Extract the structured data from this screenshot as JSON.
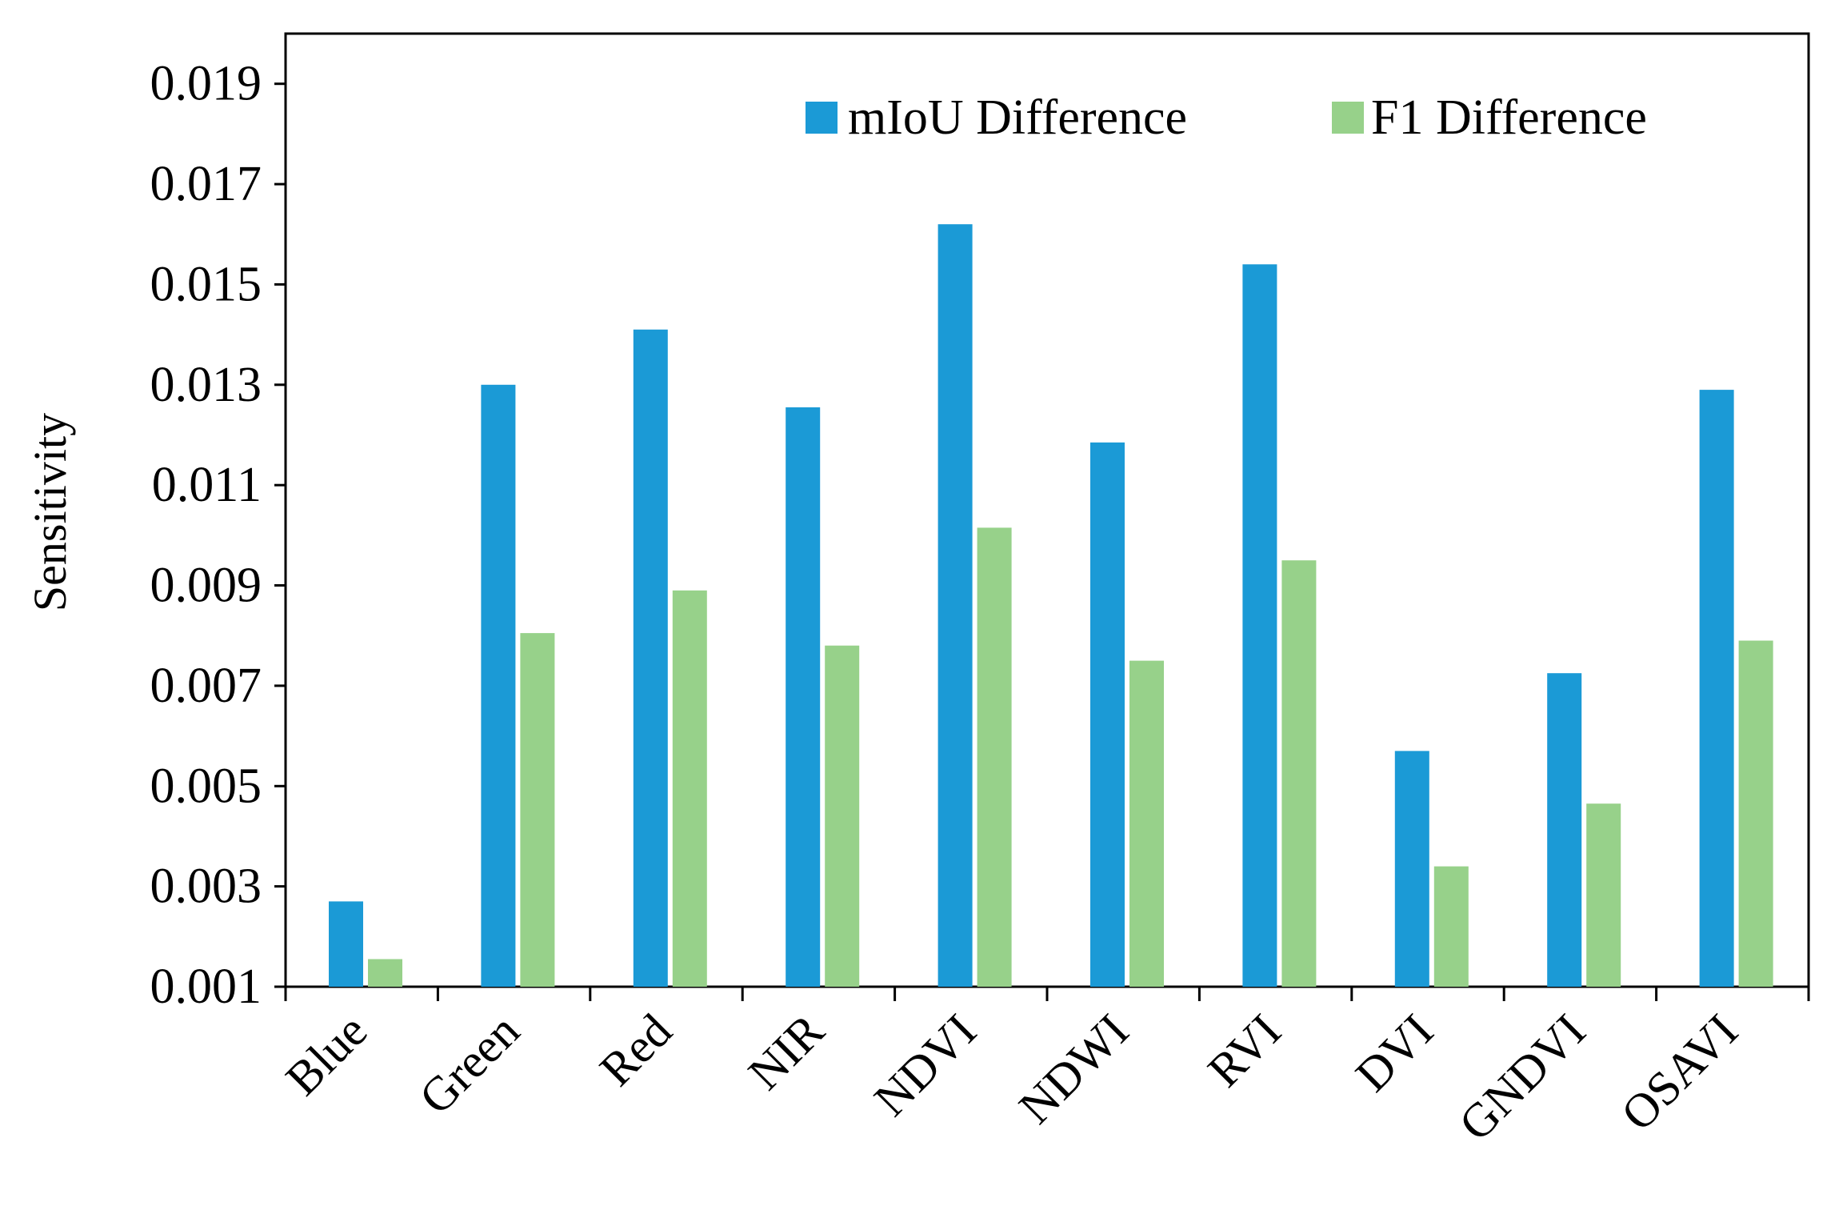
{
  "chart_data": {
    "type": "bar",
    "title": "",
    "xlabel": "",
    "ylabel": "Sensitivity",
    "categories": [
      "Blue",
      "Green",
      "Red",
      "NIR",
      "NDVI",
      "NDWI",
      "RVI",
      "DVI",
      "GNDVI",
      "OSAVI"
    ],
    "series": [
      {
        "name": "mIoU Difference",
        "color": "#1b9ad6",
        "values": [
          0.0027,
          0.013,
          0.0141,
          0.01255,
          0.0162,
          0.01185,
          0.0154,
          0.0057,
          0.00725,
          0.0129
        ]
      },
      {
        "name": "F1 Difference",
        "color": "#97d18a",
        "values": [
          0.00155,
          0.00805,
          0.0089,
          0.0078,
          0.01015,
          0.0075,
          0.0095,
          0.0034,
          0.00465,
          0.0079
        ]
      }
    ],
    "yticks": [
      "0.001",
      "0.003",
      "0.005",
      "0.007",
      "0.009",
      "0.011",
      "0.013",
      "0.015",
      "0.017",
      "0.019"
    ],
    "ylim": [
      0.001,
      0.02
    ],
    "grid": false,
    "legend_position": "top-right"
  }
}
